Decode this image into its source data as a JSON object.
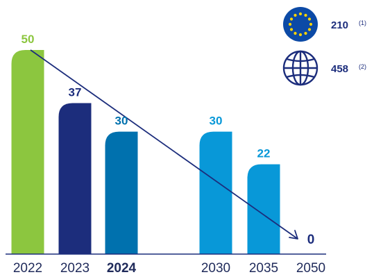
{
  "chart_data": {
    "type": "bar",
    "categories": [
      "2022",
      "2023",
      "2024",
      "2030",
      "2035",
      "2050"
    ],
    "emphasized_category": "2024",
    "values": [
      50,
      37,
      30,
      30,
      22,
      0
    ],
    "value_labels": [
      "50",
      "37",
      "30",
      "30",
      "22",
      "0"
    ],
    "bar_colors": [
      "#8cc63f",
      "#1c2d7c",
      "#0071ae",
      "#0898d8",
      "#0898d8",
      "#1c2d7c"
    ],
    "label_colors": [
      "#8cc63f",
      "#1c2d7c",
      "#0071ae",
      "#0898d8",
      "#0898d8",
      "#1c2d7c"
    ],
    "trend_line": {
      "from": "2022",
      "to": "2050",
      "start_value": 50,
      "end_value": 0,
      "color": "#1c2d7c"
    },
    "ylim": [
      0,
      55
    ],
    "title": "",
    "xlabel": "",
    "ylabel": "",
    "grid": false,
    "legend": "none"
  },
  "badges": [
    {
      "icon": "eu-flag-icon",
      "value": "210",
      "note": "(1)"
    },
    {
      "icon": "globe-icon",
      "value": "458",
      "note": "(2)"
    }
  ],
  "colors": {
    "navy": "#1c2d7c",
    "eu_blue": "#0c4aa6",
    "eu_star": "#ffd400",
    "baseline": "#1c2d7c"
  }
}
